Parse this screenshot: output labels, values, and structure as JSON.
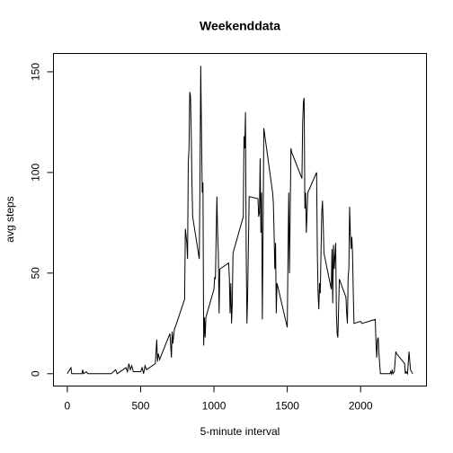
{
  "chart_data": {
    "type": "line",
    "title": "Weekenddata",
    "x_label": "5-minute interval",
    "y_label": "avg steps",
    "x": [
      0,
      25,
      30,
      100,
      105,
      110,
      130,
      140,
      200,
      300,
      330,
      340,
      400,
      410,
      420,
      430,
      440,
      450,
      500,
      510,
      520,
      530,
      540,
      600,
      610,
      615,
      620,
      630,
      640,
      700,
      710,
      715,
      720,
      730,
      745,
      800,
      805,
      815,
      820,
      825,
      830,
      835,
      840,
      845,
      850,
      855,
      900,
      905,
      910,
      915,
      920,
      925,
      930,
      935,
      940,
      945,
      1000,
      1005,
      1010,
      1015,
      1020,
      1025,
      1030,
      1035,
      1040,
      1100,
      1105,
      1110,
      1115,
      1120,
      1125,
      1130,
      1200,
      1205,
      1210,
      1215,
      1220,
      1225,
      1230,
      1240,
      1300,
      1305,
      1310,
      1315,
      1320,
      1325,
      1330,
      1335,
      1340,
      1400,
      1405,
      1410,
      1415,
      1420,
      1425,
      1430,
      1500,
      1505,
      1510,
      1515,
      1520,
      1525,
      1530,
      1600,
      1605,
      1610,
      1615,
      1620,
      1625,
      1630,
      1640,
      1700,
      1705,
      1710,
      1715,
      1720,
      1725,
      1730,
      1735,
      1740,
      1745,
      1750,
      1800,
      1805,
      1810,
      1815,
      1820,
      1830,
      1835,
      1840,
      1845,
      1855,
      1900,
      1905,
      1910,
      1915,
      1920,
      1925,
      1930,
      1935,
      1940,
      1945,
      1950,
      1955,
      2000,
      2010,
      2100,
      2105,
      2110,
      2115,
      2120,
      2125,
      2130,
      2135,
      2200,
      2205,
      2210,
      2215,
      2220,
      2230,
      2240,
      2245,
      2300,
      2305,
      2310,
      2320,
      2330,
      2340,
      2355
    ],
    "values": [
      0,
      3,
      0,
      0,
      2,
      0,
      1,
      0,
      0,
      0,
      2,
      0,
      3,
      1,
      5,
      2,
      4,
      1,
      1,
      3,
      0,
      4,
      2,
      5,
      17,
      6,
      10,
      7,
      9,
      20,
      8,
      21,
      15,
      22,
      25,
      37,
      72,
      65,
      57,
      105,
      112,
      140,
      138,
      120,
      95,
      78,
      57,
      100,
      153,
      120,
      90,
      95,
      14,
      28,
      18,
      28,
      42,
      48,
      47,
      68,
      88,
      70,
      60,
      30,
      52,
      55,
      48,
      30,
      45,
      25,
      35,
      60,
      78,
      118,
      112,
      130,
      60,
      25,
      40,
      88,
      87,
      78,
      80,
      107,
      70,
      90,
      27,
      70,
      122,
      90,
      85,
      70,
      52,
      65,
      30,
      45,
      23,
      60,
      90,
      50,
      80,
      112,
      110,
      97,
      125,
      135,
      137,
      82,
      90,
      70,
      90,
      100,
      60,
      40,
      32,
      45,
      40,
      60,
      80,
      86,
      75,
      60,
      42,
      62,
      35,
      64,
      52,
      65,
      30,
      20,
      18,
      47,
      38,
      30,
      25,
      48,
      52,
      83,
      70,
      62,
      68,
      60,
      40,
      25,
      26,
      25,
      27,
      15,
      8,
      17,
      18,
      10,
      5,
      0,
      0,
      1,
      0,
      2,
      0,
      1,
      11,
      10,
      5,
      0,
      1,
      0,
      11,
      2,
      0
    ],
    "color": "#000000",
    "xlim": [
      -94.2,
      2449.2
    ],
    "xticks": [
      0,
      500,
      1000,
      1500,
      2000
    ],
    "ylim": [
      -6.12,
      159.12
    ],
    "yticks": [
      0,
      50,
      100,
      150
    ],
    "grid": false
  }
}
